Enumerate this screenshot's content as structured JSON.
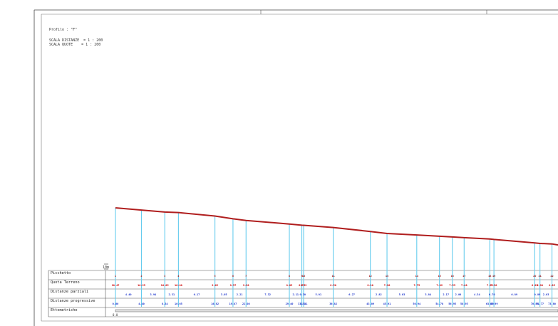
{
  "header": {
    "profile_line": "Profilo : \"F\"",
    "scale_distances": "SCALA DISTANZE  = 1 : 200",
    "scale_heights": "SCALA QUOTE    = 1 : 200"
  },
  "datum_label": "10m",
  "table": {
    "rows": [
      {
        "key": "picchetto",
        "label": "Picchetto"
      },
      {
        "key": "quota",
        "label": "Quota Terreno"
      },
      {
        "key": "parziali",
        "label": "Distanze parziali"
      },
      {
        "key": "progressive",
        "label": "Distanze progressive"
      },
      {
        "key": "ettometriche",
        "label": "Ettometriche"
      }
    ]
  },
  "colors": {
    "profile_line": "#b01e1e",
    "verticals": "#66ccee",
    "elevation_labels": "#cc0000",
    "distance_labels": "#1a33cc",
    "grid": "#555555"
  },
  "profile": {
    "stations_x_px_note": "",
    "stations": [
      {
        "id": "1",
        "elev": "10.47",
        "partial": "",
        "progressive": "0.00"
      },
      {
        "id": "2",
        "elev": "10.25",
        "partial": "4.40",
        "progressive": "4.40"
      },
      {
        "id": "3",
        "elev": "10.05",
        "partial": "3.94",
        "progressive": "8.34"
      },
      {
        "id": "4",
        "elev": "10.00",
        "partial": "2.31",
        "progressive": "10.65"
      },
      {
        "id": "5",
        "elev": "9.65",
        "partial": "6.17",
        "progressive": "16.82"
      },
      {
        "id": "6",
        "elev": "9.37",
        "partial": "3.05",
        "progressive": "19.87"
      },
      {
        "id": "7",
        "elev": "9.20",
        "partial": "2.21",
        "progressive": "22.08"
      },
      {
        "id": "8",
        "elev": "8.85",
        "partial": "7.32",
        "progressive": "29.40"
      },
      {
        "id": "9",
        "elev": "8.73",
        "partial": "2.11",
        "progressive": "31.51"
      },
      {
        "id": "10",
        "elev": "8.72",
        "partial": "0.30",
        "progressive": "31.81"
      },
      {
        "id": "11",
        "elev": "8.50",
        "partial": "5.01",
        "progressive": "36.82"
      },
      {
        "id": "12",
        "elev": "8.10",
        "partial": "6.27",
        "progressive": "43.09"
      },
      {
        "id": "13",
        "elev": "7.90",
        "partial": "2.82",
        "progressive": "45.91"
      },
      {
        "id": "14",
        "elev": "7.75",
        "partial": "5.03",
        "progressive": "50.94"
      },
      {
        "id": "15",
        "elev": "7.62",
        "partial": "3.84",
        "progressive": "54.78"
      },
      {
        "id": "16",
        "elev": "7.55",
        "partial": "2.17",
        "progressive": "56.95"
      },
      {
        "id": "17",
        "elev": "7.48",
        "partial": "2.00",
        "progressive": "58.95"
      },
      {
        "id": "18",
        "elev": "7.35",
        "partial": "4.34",
        "progressive": "63.29"
      },
      {
        "id": "19",
        "elev": "7.30",
        "partial": "0.70",
        "progressive": "63.99"
      },
      {
        "id": "20",
        "elev": "6.95",
        "partial": "6.89",
        "progressive": "70.88"
      },
      {
        "id": "21",
        "elev": "6.90",
        "partial": "0.89",
        "progressive": "71.77"
      },
      {
        "id": "22",
        "elev": "6.85",
        "partial": "2.03",
        "progressive": "73.80"
      }
    ]
  }
}
